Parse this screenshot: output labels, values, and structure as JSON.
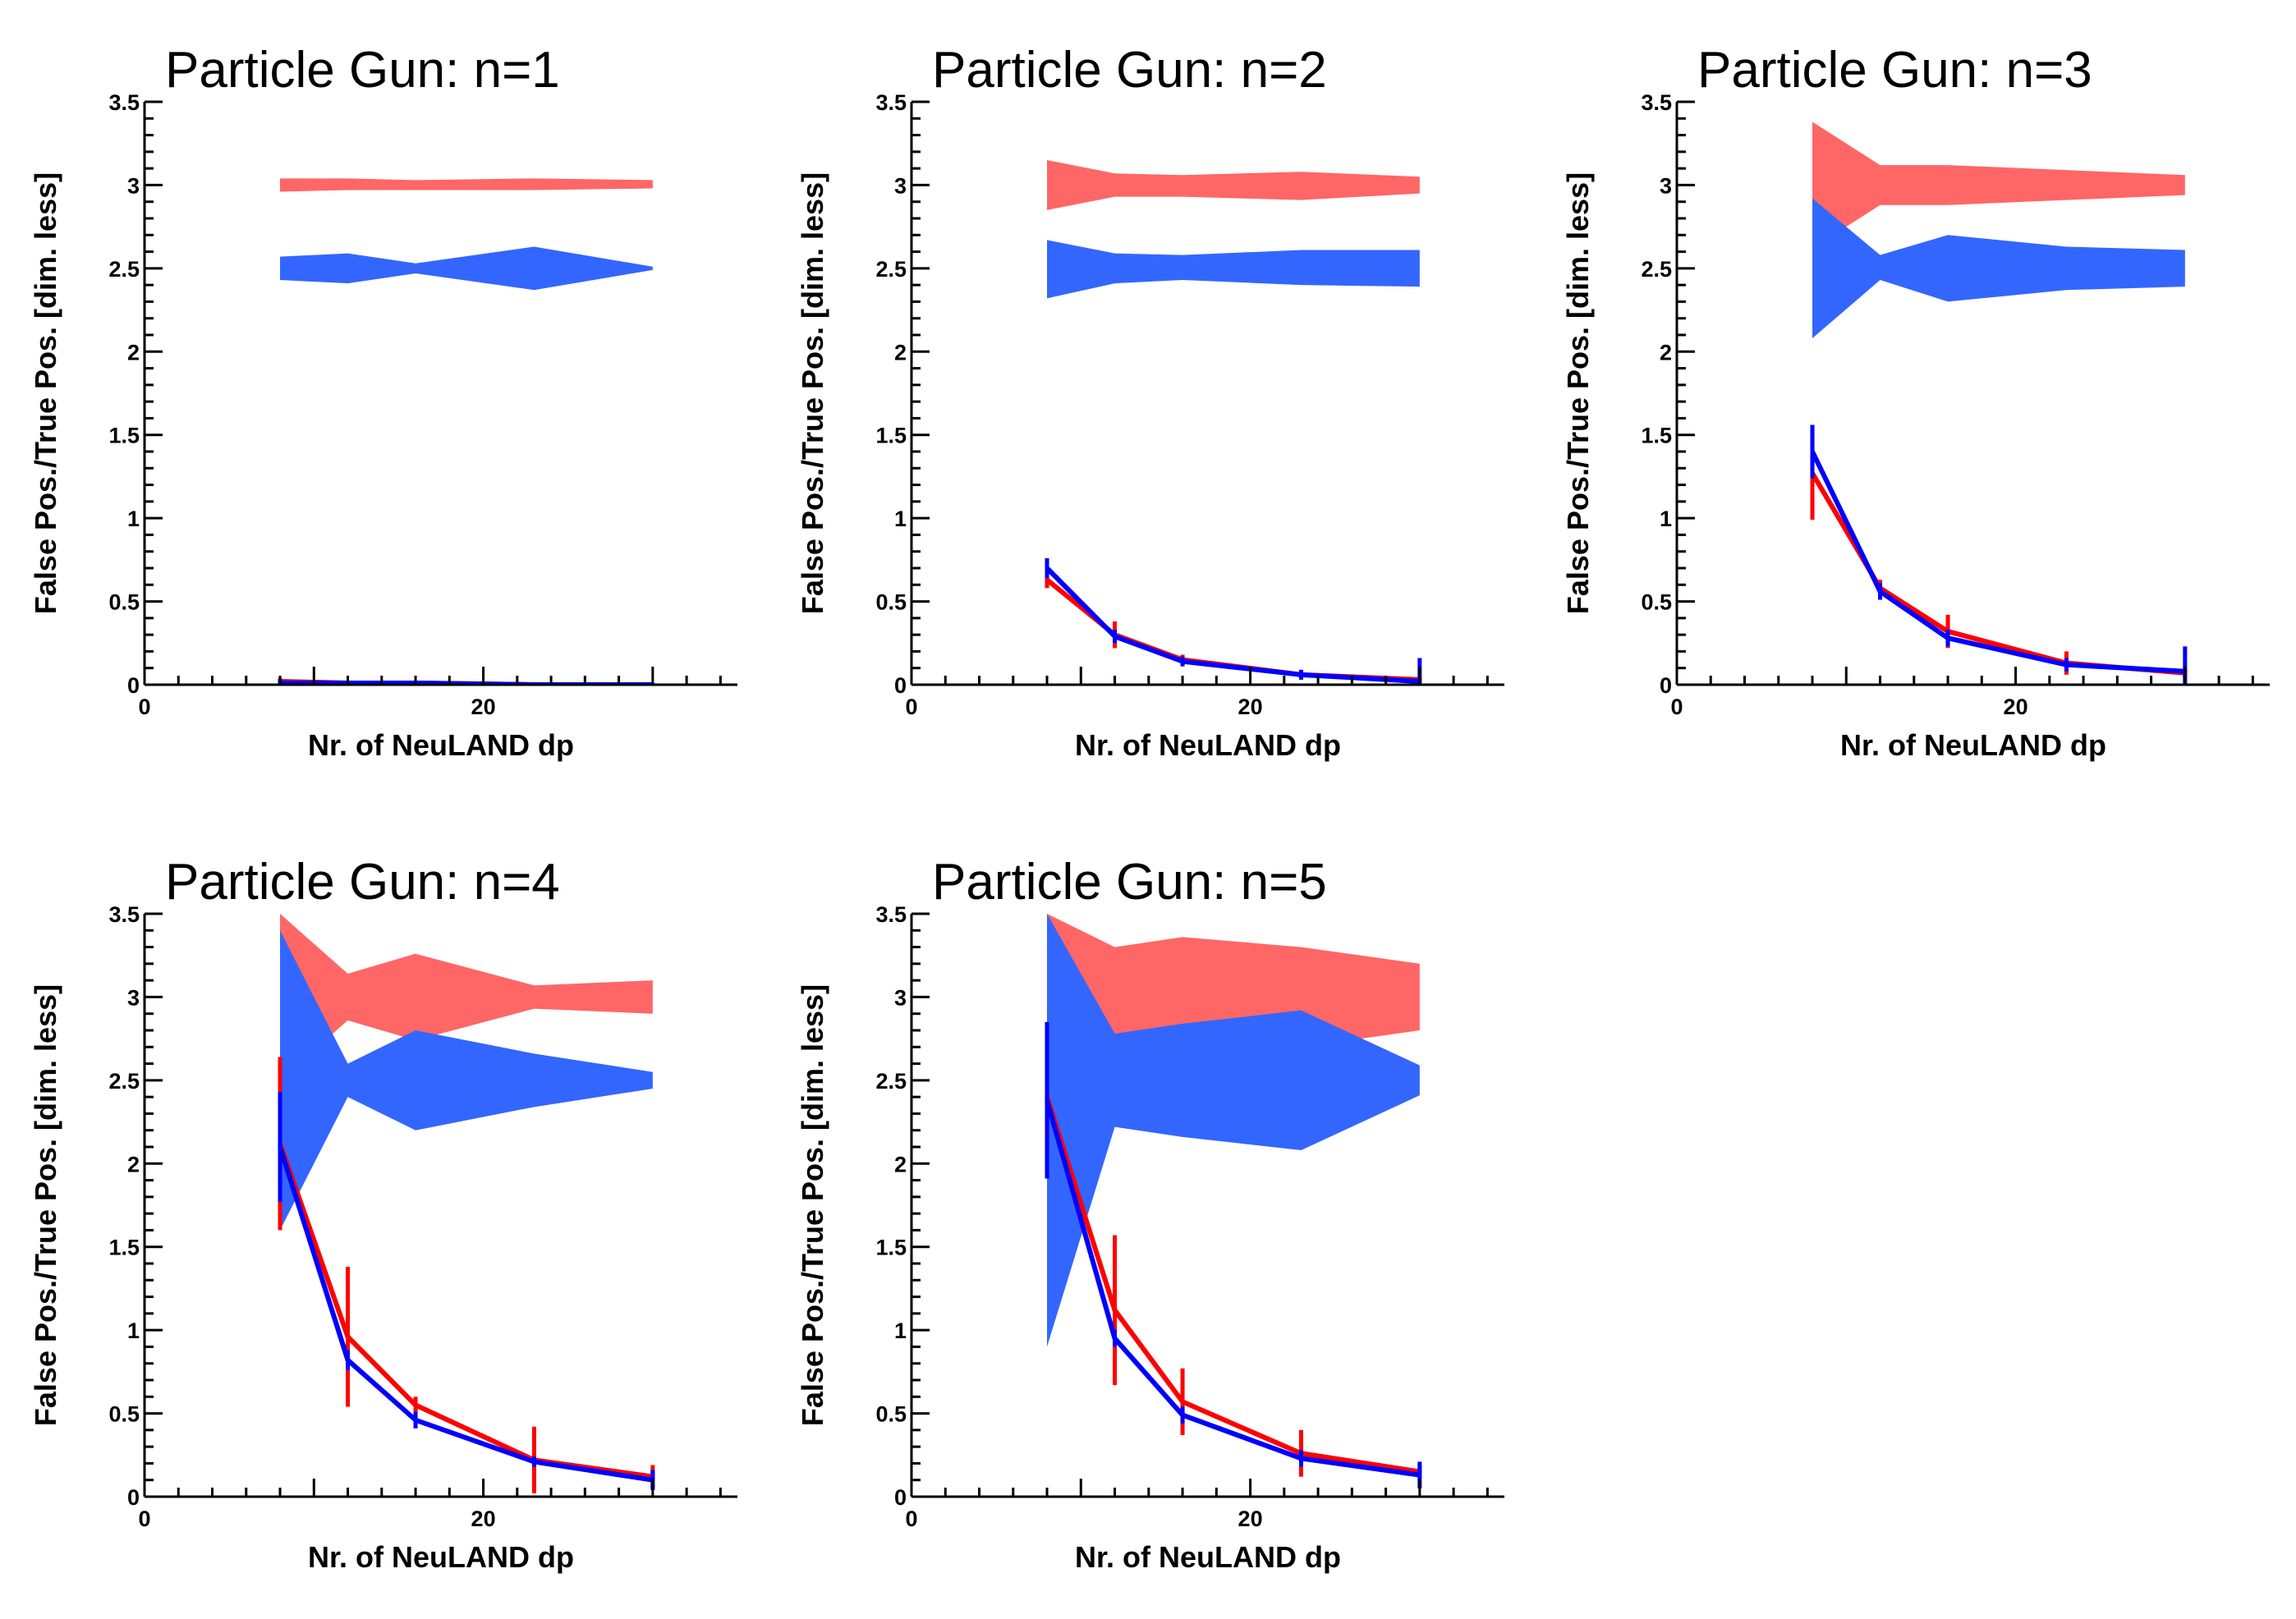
{
  "chart_data": [
    {
      "type": "line",
      "title": "Particle Gun: n=1",
      "xlabel": "Nr. of NeuLAND dp",
      "ylabel": "False Pos./True Pos. [dim. less]",
      "xlim": [
        0,
        35
      ],
      "ylim": [
        0,
        3.5
      ],
      "x_ticks": [
        "0",
        "20"
      ],
      "y_ticks": [
        "0",
        "0.5",
        "1",
        "1.5",
        "2",
        "2.5",
        "3",
        "3.5"
      ],
      "grid": false,
      "bands": [
        {
          "color": "#ff6666",
          "x": [
            8,
            12,
            16,
            23,
            30
          ],
          "y_low": [
            2.96,
            2.97,
            2.97,
            2.97,
            2.98
          ],
          "y_high": [
            3.04,
            3.04,
            3.03,
            3.04,
            3.03
          ]
        },
        {
          "color": "#3366ff",
          "x": [
            8,
            12,
            16,
            23,
            30
          ],
          "y_low": [
            2.43,
            2.41,
            2.47,
            2.37,
            2.49
          ],
          "y_high": [
            2.57,
            2.59,
            2.53,
            2.63,
            2.51
          ]
        }
      ],
      "series": [
        {
          "color": "#ff0000",
          "x": [
            8,
            12,
            16,
            23,
            30
          ],
          "y": [
            0.02,
            0.01,
            0.01,
            0.0,
            0.0
          ],
          "err": [
            0.02,
            0.01,
            0.01,
            0.01,
            0.01
          ]
        },
        {
          "color": "#0000ff",
          "x": [
            8,
            12,
            16,
            23,
            30
          ],
          "y": [
            0.01,
            0.01,
            0.01,
            0.0,
            0.0
          ],
          "err": [
            0.02,
            0.01,
            0.01,
            0.01,
            0.01
          ]
        }
      ]
    },
    {
      "type": "line",
      "title": "Particle Gun: n=2",
      "xlabel": "Nr. of NeuLAND dp",
      "ylabel": "False Pos./True Pos. [dim. less]",
      "xlim": [
        0,
        35
      ],
      "ylim": [
        0,
        3.5
      ],
      "x_ticks": [
        "0",
        "20"
      ],
      "y_ticks": [
        "0",
        "0.5",
        "1",
        "1.5",
        "2",
        "2.5",
        "3",
        "3.5"
      ],
      "grid": false,
      "bands": [
        {
          "color": "#ff6666",
          "x": [
            8,
            12,
            16,
            23,
            30
          ],
          "y_low": [
            2.85,
            2.93,
            2.93,
            2.91,
            2.95
          ],
          "y_high": [
            3.15,
            3.07,
            3.06,
            3.08,
            3.05
          ]
        },
        {
          "color": "#3366ff",
          "x": [
            8,
            12,
            16,
            23,
            30
          ],
          "y_low": [
            2.32,
            2.41,
            2.43,
            2.4,
            2.39
          ],
          "y_high": [
            2.67,
            2.59,
            2.58,
            2.61,
            2.61
          ]
        }
      ],
      "series": [
        {
          "color": "#ff0000",
          "x": [
            8,
            12,
            16,
            23,
            30
          ],
          "y": [
            0.63,
            0.3,
            0.15,
            0.06,
            0.03
          ],
          "err": [
            0.05,
            0.08,
            0.03,
            0.02,
            0.02
          ]
        },
        {
          "color": "#0000ff",
          "x": [
            8,
            12,
            16,
            23,
            30
          ],
          "y": [
            0.7,
            0.29,
            0.14,
            0.06,
            0.02
          ],
          "err": [
            0.06,
            0.04,
            0.03,
            0.03,
            0.14
          ]
        }
      ]
    },
    {
      "type": "line",
      "title": "Particle Gun: n=3",
      "xlabel": "Nr. of NeuLAND dp",
      "ylabel": "False Pos./True Pos. [dim. less]",
      "xlim": [
        0,
        35
      ],
      "ylim": [
        0,
        3.5
      ],
      "x_ticks": [
        "0",
        "20"
      ],
      "y_ticks": [
        "0",
        "0.5",
        "1",
        "1.5",
        "2",
        "2.5",
        "3",
        "3.5"
      ],
      "grid": false,
      "bands": [
        {
          "color": "#ff6666",
          "x": [
            8,
            12,
            16,
            23,
            30
          ],
          "y_low": [
            2.62,
            2.88,
            2.88,
            2.91,
            2.94
          ],
          "y_high": [
            3.38,
            3.12,
            3.12,
            3.09,
            3.06
          ]
        },
        {
          "color": "#3366ff",
          "x": [
            8,
            12,
            16,
            23,
            30
          ],
          "y_low": [
            2.08,
            2.43,
            2.3,
            2.37,
            2.39
          ],
          "y_high": [
            2.92,
            2.58,
            2.7,
            2.63,
            2.61
          ]
        }
      ],
      "series": [
        {
          "color": "#ff0000",
          "x": [
            8,
            12,
            16,
            23,
            30
          ],
          "y": [
            1.27,
            0.58,
            0.32,
            0.13,
            0.07
          ],
          "err": [
            0.28,
            0.05,
            0.1,
            0.07,
            0.03
          ]
        },
        {
          "color": "#0000ff",
          "x": [
            8,
            12,
            16,
            23,
            30
          ],
          "y": [
            1.4,
            0.56,
            0.28,
            0.12,
            0.08
          ],
          "err": [
            0.16,
            0.05,
            0.05,
            0.04,
            0.15
          ]
        }
      ]
    },
    {
      "type": "line",
      "title": "Particle Gun: n=4",
      "xlabel": "Nr. of NeuLAND dp",
      "ylabel": "False Pos./True Pos. [dim. less]",
      "xlim": [
        0,
        35
      ],
      "ylim": [
        0,
        3.5
      ],
      "x_ticks": [
        "0",
        "20"
      ],
      "y_ticks": [
        "0",
        "0.5",
        "1",
        "1.5",
        "2",
        "2.5",
        "3",
        "3.5"
      ],
      "grid": false,
      "bands": [
        {
          "color": "#ff6666",
          "x": [
            8,
            12,
            16,
            23,
            30
          ],
          "y_low": [
            2.5,
            2.86,
            2.74,
            2.93,
            2.9
          ],
          "y_high": [
            3.5,
            3.14,
            3.26,
            3.07,
            3.1
          ]
        },
        {
          "color": "#3366ff",
          "x": [
            8,
            12,
            16,
            23,
            30
          ],
          "y_low": [
            1.6,
            2.4,
            2.2,
            2.34,
            2.45
          ],
          "y_high": [
            3.4,
            2.6,
            2.8,
            2.66,
            2.55
          ]
        }
      ],
      "series": [
        {
          "color": "#ff0000",
          "x": [
            8,
            12,
            16,
            23,
            30
          ],
          "y": [
            2.12,
            0.96,
            0.55,
            0.22,
            0.12
          ],
          "err": [
            0.52,
            0.42,
            0.05,
            0.2,
            0.07
          ]
        },
        {
          "color": "#0000ff",
          "x": [
            8,
            12,
            16,
            23,
            30
          ],
          "y": [
            2.1,
            0.82,
            0.46,
            0.21,
            0.1
          ],
          "err": [
            0.33,
            0.06,
            0.05,
            0.03,
            0.06
          ]
        }
      ]
    },
    {
      "type": "line",
      "title": "Particle Gun: n=5",
      "xlabel": "Nr. of NeuLAND dp",
      "ylabel": "False Pos./True Pos. [dim. less]",
      "xlim": [
        0,
        35
      ],
      "ylim": [
        0,
        3.5
      ],
      "x_ticks": [
        "0",
        "20"
      ],
      "y_ticks": [
        "0",
        "0.5",
        "1",
        "1.5",
        "2",
        "2.5",
        "3",
        "3.5"
      ],
      "grid": false,
      "bands": [
        {
          "color": "#ff6666",
          "x": [
            8,
            12,
            16,
            23,
            30
          ],
          "y_low": [
            2.5,
            2.7,
            2.64,
            2.7,
            2.8
          ],
          "y_high": [
            3.5,
            3.3,
            3.36,
            3.3,
            3.2
          ]
        },
        {
          "color": "#3366ff",
          "x": [
            8,
            12,
            16,
            23,
            30
          ],
          "y_low": [
            0.9,
            2.22,
            2.16,
            2.08,
            2.41
          ],
          "y_high": [
            3.5,
            2.78,
            2.84,
            2.92,
            2.59
          ]
        }
      ],
      "series": [
        {
          "color": "#ff0000",
          "x": [
            8,
            12,
            16,
            23,
            30
          ],
          "y": [
            2.4,
            1.12,
            0.57,
            0.26,
            0.15
          ],
          "err": [
            0.4,
            0.45,
            0.2,
            0.14,
            0.04
          ]
        },
        {
          "color": "#0000ff",
          "x": [
            8,
            12,
            16,
            23,
            30
          ],
          "y": [
            2.38,
            0.95,
            0.49,
            0.23,
            0.13
          ],
          "err": [
            0.47,
            0.05,
            0.05,
            0.05,
            0.08
          ]
        }
      ]
    }
  ]
}
